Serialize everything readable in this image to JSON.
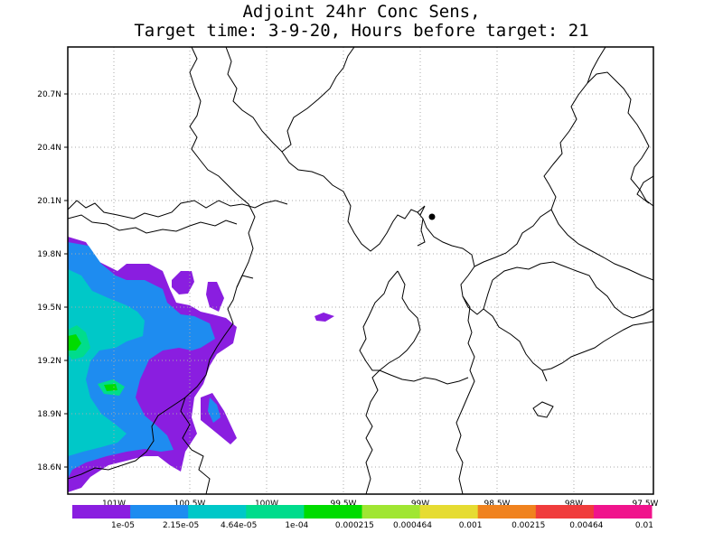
{
  "title": {
    "line1": "Adjoint 24hr Conc Sens,",
    "line2": "Target time: 3-9-20, Hours before target: 21"
  },
  "map": {
    "lat_labels": [
      "20.7N",
      "20.4N",
      "20.1N",
      "19.8N",
      "19.5N",
      "19.2N",
      "18.9N",
      "18.6N"
    ],
    "lon_labels": [
      "101W",
      "100.5W",
      "100W",
      "99.5W",
      "99W",
      "98.5W",
      "98W",
      "97.5W"
    ],
    "lat_range": [
      18.45,
      20.95
    ],
    "lon_range": [
      -101.3,
      -97.5
    ],
    "grid": "dotted",
    "marker": "target location (black dot)"
  },
  "legend": {
    "levels": [
      "1e-05",
      "2.15e-05",
      "4.64e-05",
      "1e-04",
      "0.000215",
      "0.000464",
      "0.001",
      "0.00215",
      "0.00464",
      "0.01"
    ],
    "colors": [
      "#8a1ee0",
      "#1e8cf0",
      "#00c8c8",
      "#00dc8c",
      "#00dc00",
      "#a0e632",
      "#e6dc32",
      "#f0821e",
      "#f03c3c",
      "#f0148c"
    ]
  }
}
